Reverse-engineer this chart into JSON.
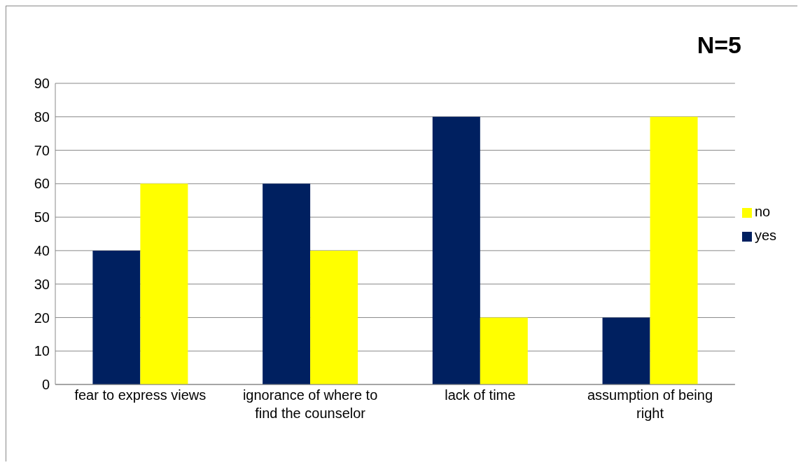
{
  "chart_data": {
    "type": "bar",
    "title": "N=5",
    "categories": [
      "fear to express views",
      "ignorance of where to find the counselor",
      "lack of time",
      "assumption of being right"
    ],
    "series": [
      {
        "name": "yes",
        "color": "#002060",
        "values": [
          40,
          60,
          80,
          20
        ]
      },
      {
        "name": "no",
        "color": "#ffff00",
        "values": [
          60,
          40,
          20,
          80
        ]
      }
    ],
    "ylim": [
      0,
      90
    ],
    "yticks": [
      0,
      10,
      20,
      30,
      40,
      50,
      60,
      70,
      80,
      90
    ],
    "grid": "y",
    "legend": "right"
  }
}
